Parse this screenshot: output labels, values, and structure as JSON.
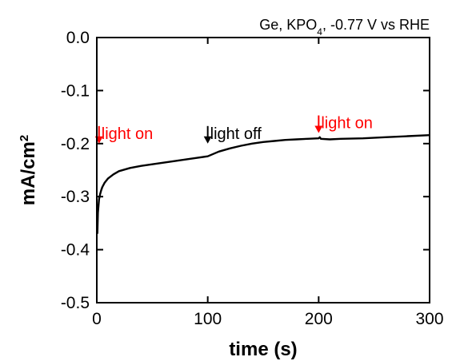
{
  "chart_data": {
    "type": "line",
    "title_parts": {
      "pre": "Ge, KPO",
      "sub": "4",
      "post": ", -0.77 V vs RHE"
    },
    "xlabel": "time (s)",
    "ylabel_parts": {
      "base": "mA/cm",
      "sup": "2"
    },
    "xlim": [
      0,
      300
    ],
    "ylim": [
      -0.5,
      0.0
    ],
    "x_ticks": [
      0,
      100,
      200,
      300
    ],
    "y_ticks": [
      0.0,
      -0.1,
      -0.2,
      -0.3,
      -0.4,
      -0.5
    ],
    "x_tick_labels": [
      "0",
      "100",
      "200",
      "300"
    ],
    "y_tick_labels": [
      "0.0",
      "-0.1",
      "-0.2",
      "-0.3",
      "-0.4",
      "-0.5"
    ],
    "grid": false,
    "legend": "none",
    "series": [
      {
        "color": "#000000",
        "x": [
          0.5,
          1,
          2,
          3,
          4,
          5,
          7,
          10,
          15,
          20,
          30,
          40,
          50,
          60,
          70,
          80,
          90,
          100,
          110,
          120,
          130,
          140,
          150,
          160,
          170,
          180,
          190,
          200,
          201,
          202,
          210,
          220,
          240,
          260,
          280,
          300
        ],
        "y": [
          -0.37,
          -0.33,
          -0.305,
          -0.295,
          -0.288,
          -0.282,
          -0.274,
          -0.266,
          -0.258,
          -0.252,
          -0.246,
          -0.242,
          -0.239,
          -0.236,
          -0.233,
          -0.23,
          -0.227,
          -0.224,
          -0.215,
          -0.209,
          -0.204,
          -0.2,
          -0.197,
          -0.195,
          -0.193,
          -0.192,
          -0.191,
          -0.19,
          -0.188,
          -0.191,
          -0.192,
          -0.191,
          -0.19,
          -0.188,
          -0.186,
          -0.184
        ]
      }
    ],
    "annotations": [
      {
        "text": "light on",
        "x": 2,
        "y": -0.2,
        "color": "#ff0000"
      },
      {
        "text": "light off",
        "x": 100,
        "y": -0.2,
        "color": "#000000"
      },
      {
        "text": "light on",
        "x": 200,
        "y": -0.18,
        "color": "#ff0000"
      }
    ]
  }
}
